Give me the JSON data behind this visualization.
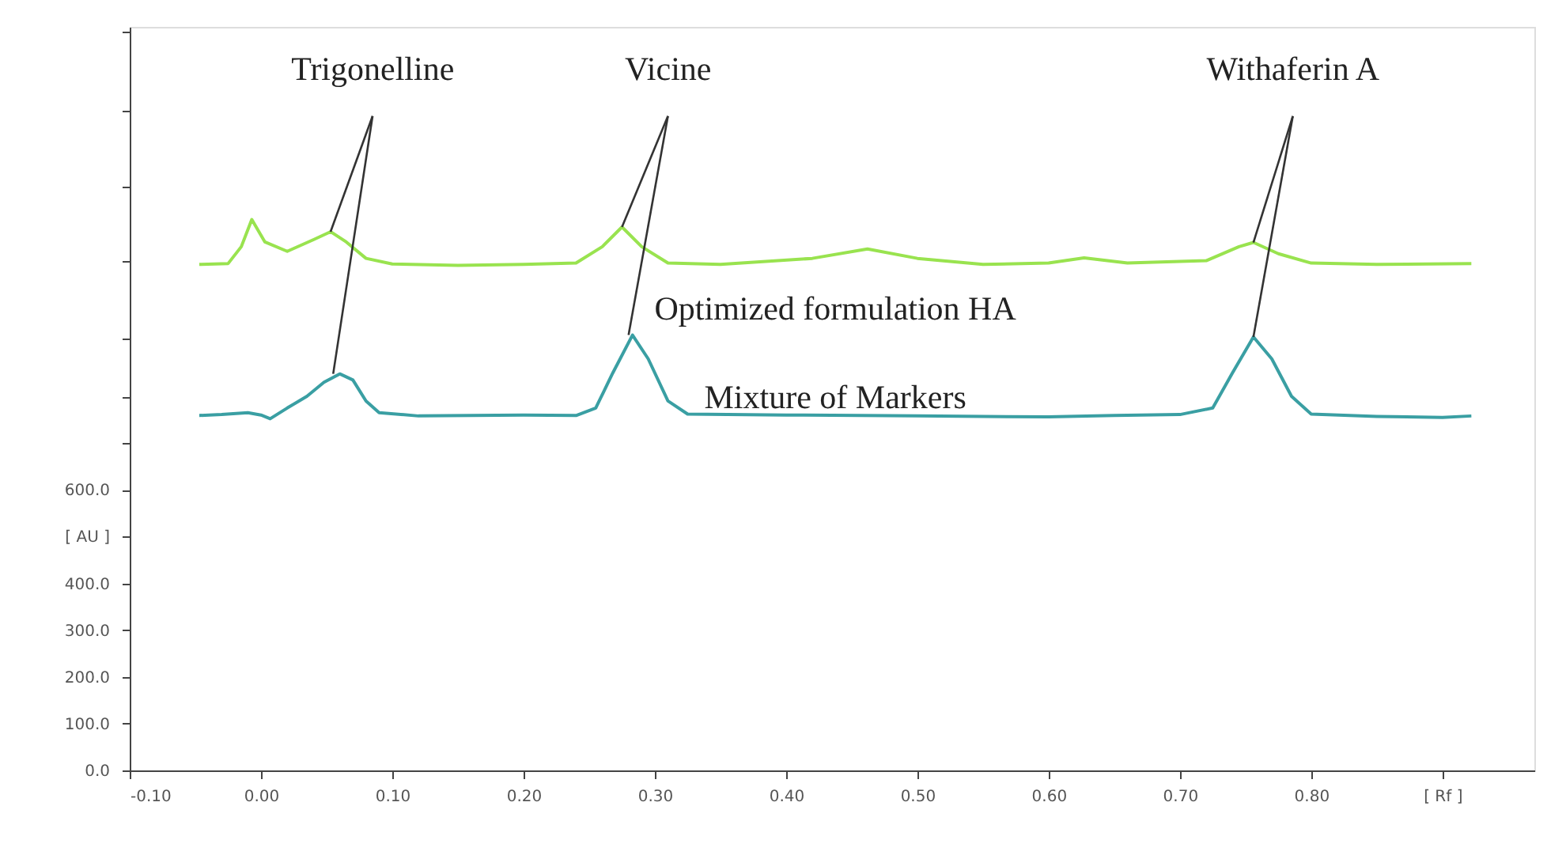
{
  "chart_data": {
    "type": "line",
    "xlim": [
      -0.1,
      0.97
    ],
    "xticks": [
      {
        "value": -0.1,
        "label": "-0.10"
      },
      {
        "value": 0.0,
        "label": "0.00"
      },
      {
        "value": 0.1,
        "label": "0.10"
      },
      {
        "value": 0.2,
        "label": "0.20"
      },
      {
        "value": 0.3,
        "label": "0.30"
      },
      {
        "value": 0.4,
        "label": "0.40"
      },
      {
        "value": 0.5,
        "label": "0.50"
      },
      {
        "value": 0.6,
        "label": "0.60"
      },
      {
        "value": 0.7,
        "label": "0.70"
      },
      {
        "value": 0.8,
        "label": "0.80"
      },
      {
        "value": 0.9,
        "label": "[ Rf ]"
      }
    ],
    "ylim": [
      0,
      1590
    ],
    "yticks": [
      {
        "value": 0,
        "label": "0.0"
      },
      {
        "value": 100,
        "label": "100.0"
      },
      {
        "value": 200,
        "label": "200.0"
      },
      {
        "value": 300,
        "label": "300.0"
      },
      {
        "value": 400,
        "label": "400.0"
      },
      {
        "value": 500,
        "label": "[ AU ]"
      },
      {
        "value": 600,
        "label": "600.0"
      },
      {
        "value": 700,
        "label": null
      },
      {
        "value": 800,
        "label": null
      },
      {
        "value": 925,
        "label": null
      },
      {
        "value": 1090,
        "label": null
      },
      {
        "value": 1250,
        "label": null
      },
      {
        "value": 1410,
        "label": null
      },
      {
        "value": 1580,
        "label": null
      }
    ],
    "grid": false,
    "series": [
      {
        "name": "Optimized formulation HA",
        "color": "#99e34f",
        "x": [
          -0.047,
          -0.025,
          -0.015,
          -0.007,
          0.003,
          0.02,
          0.04,
          0.053,
          0.065,
          0.08,
          0.1,
          0.15,
          0.2,
          0.24,
          0.26,
          0.275,
          0.29,
          0.31,
          0.35,
          0.42,
          0.462,
          0.5,
          0.55,
          0.6,
          0.627,
          0.66,
          0.72,
          0.745,
          0.756,
          0.775,
          0.8,
          0.85,
          0.922
        ],
        "values": [
          1082,
          1084,
          1120,
          1178,
          1130,
          1110,
          1135,
          1152,
          1130,
          1095,
          1083,
          1080,
          1082,
          1085,
          1120,
          1162,
          1120,
          1085,
          1082,
          1095,
          1115,
          1095,
          1082,
          1085,
          1096,
          1085,
          1090,
          1120,
          1129,
          1105,
          1085,
          1082,
          1084
        ]
      },
      {
        "name": "Mixture of Markers",
        "color": "#3a9fa3",
        "x": [
          -0.047,
          -0.03,
          -0.01,
          0.0,
          0.007,
          0.02,
          0.035,
          0.048,
          0.06,
          0.07,
          0.08,
          0.09,
          0.12,
          0.2,
          0.24,
          0.255,
          0.268,
          0.283,
          0.295,
          0.31,
          0.325,
          0.4,
          0.5,
          0.6,
          0.65,
          0.7,
          0.725,
          0.74,
          0.756,
          0.77,
          0.785,
          0.8,
          0.85,
          0.9,
          0.922
        ],
        "values": [
          759,
          761,
          765,
          760,
          752,
          775,
          800,
          830,
          848,
          835,
          790,
          765,
          758,
          760,
          759,
          775,
          850,
          931,
          880,
          790,
          762,
          760,
          758,
          756,
          759,
          761,
          775,
          850,
          927,
          880,
          800,
          762,
          757,
          755,
          758
        ]
      }
    ],
    "annotations": [
      {
        "text": "Trigonelline",
        "x": 0.055,
        "y": 848
      },
      {
        "text": "Vicine",
        "x": 0.28,
        "y": 931
      },
      {
        "text": "Withaferin A",
        "x": 0.756,
        "y": 927
      }
    ]
  }
}
